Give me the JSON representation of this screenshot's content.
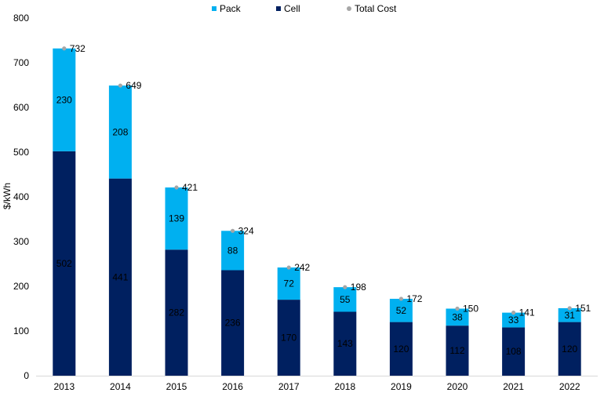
{
  "chart_data": {
    "type": "bar",
    "stacked": true,
    "categories": [
      "2013",
      "2014",
      "2015",
      "2016",
      "2017",
      "2018",
      "2019",
      "2020",
      "2021",
      "2022"
    ],
    "series": [
      {
        "name": "Cell",
        "color": "#002060",
        "values": [
          502,
          441,
          282,
          236,
          170,
          143,
          120,
          112,
          108,
          120
        ]
      },
      {
        "name": "Pack",
        "color": "#00B0F0",
        "values": [
          230,
          208,
          139,
          88,
          72,
          55,
          52,
          38,
          33,
          31
        ]
      }
    ],
    "totals": {
      "name": "Total Cost",
      "color": "#A6A6A6",
      "values": [
        732,
        649,
        421,
        324,
        242,
        198,
        172,
        150,
        141,
        151
      ]
    },
    "legend_order": [
      "Pack",
      "Cell",
      "Total Cost"
    ],
    "legend_position": "top",
    "ylabel": "$/kWh",
    "xlabel": "",
    "ylim": [
      0,
      800
    ],
    "yticks": [
      0,
      100,
      200,
      300,
      400,
      500,
      600,
      700,
      800
    ],
    "grid": false
  }
}
